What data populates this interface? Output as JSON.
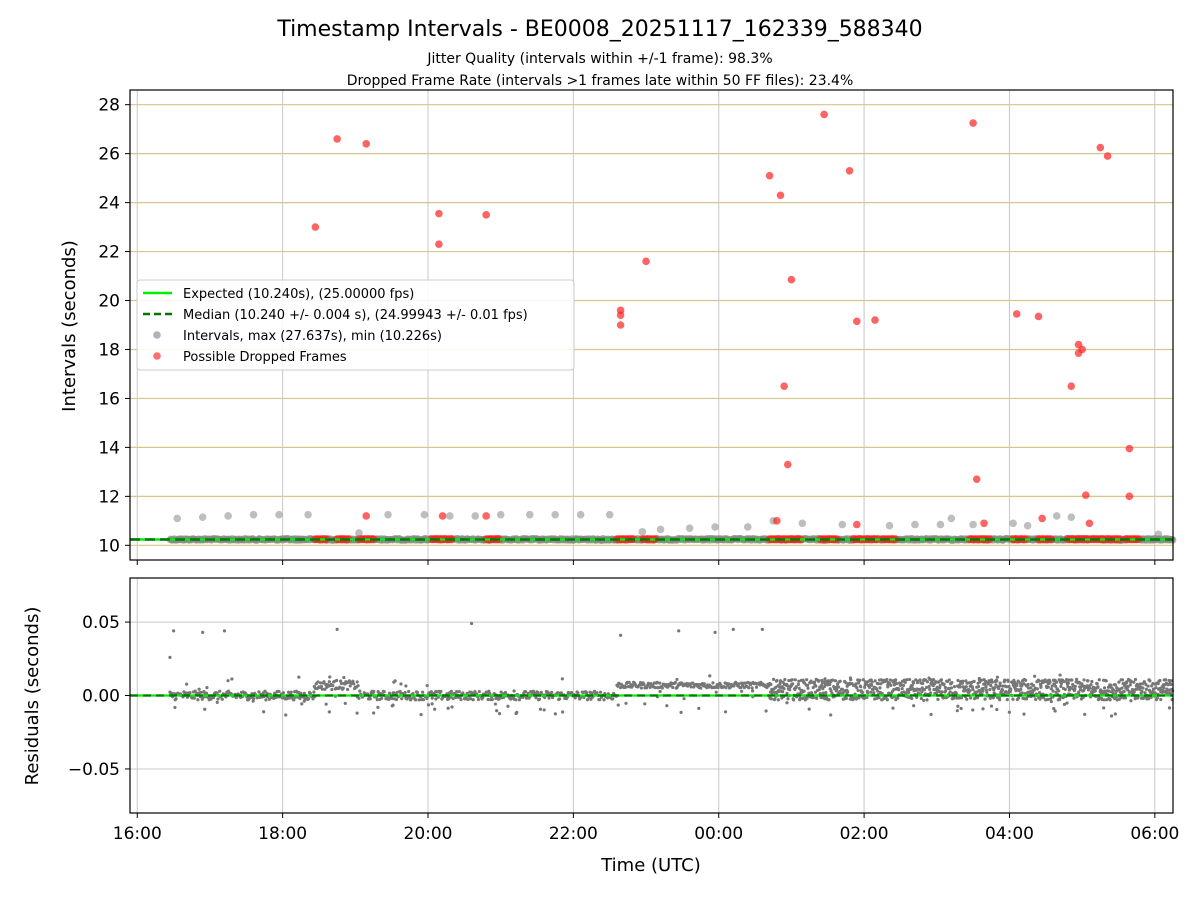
{
  "chart_data": {
    "title": "Timestamp Intervals - BE0008_20251117_162339_588340",
    "subtitle_lines": [
      "Jitter Quality (intervals within +/-1 frame): 98.3%",
      "Dropped Frame Rate (intervals >1 frames late within 50 FF files): 23.4%"
    ],
    "xlabel": "Time (UTC)",
    "x_axis_type": "time",
    "x_ticks": [
      "16:00",
      "18:00",
      "20:00",
      "22:00",
      "00:00",
      "02:00",
      "04:00",
      "06:00"
    ],
    "x_range_hours_since_16": [
      -0.1,
      14.25
    ],
    "grid": true,
    "legend_position": "center-left",
    "colors": {
      "expected": "#00ee00",
      "median": "#007700",
      "intervals": "#888888",
      "dropped": "#ff2222",
      "hgrid_top": "#d8c58a",
      "grid": "#c8c8c8",
      "residuals": "#777777"
    },
    "legend": {
      "expected": "Expected (10.240s), (25.00000 fps)",
      "median": "Median (10.240 +/- 0.004 s), (24.99943 +/- 0.01 fps)",
      "intervals": "Intervals, max (27.637s), min (10.226s)",
      "dropped": "Possible Dropped Frames"
    },
    "top_panel": {
      "type": "scatter",
      "ylabel": "Intervals (seconds)",
      "ylim": [
        9.4,
        28.6
      ],
      "y_ticks": [
        "10",
        "12",
        "14",
        "16",
        "18",
        "20",
        "22",
        "24",
        "26",
        "28"
      ],
      "expected_value": 10.24,
      "median_value": 10.24,
      "baseline_range_hours": [
        0.45,
        14.25
      ],
      "gray_points": [
        [
          0.55,
          11.1
        ],
        [
          0.9,
          11.15
        ],
        [
          1.25,
          11.2
        ],
        [
          1.6,
          11.25
        ],
        [
          1.95,
          11.25
        ],
        [
          2.35,
          11.25
        ],
        [
          3.05,
          10.5
        ],
        [
          3.45,
          11.25
        ],
        [
          3.95,
          11.25
        ],
        [
          4.3,
          11.2
        ],
        [
          4.65,
          11.2
        ],
        [
          5.0,
          11.25
        ],
        [
          5.4,
          11.25
        ],
        [
          5.75,
          11.25
        ],
        [
          6.1,
          11.25
        ],
        [
          6.5,
          11.25
        ],
        [
          6.95,
          10.55
        ],
        [
          7.2,
          10.65
        ],
        [
          7.6,
          10.7
        ],
        [
          7.95,
          10.75
        ],
        [
          8.4,
          10.75
        ],
        [
          8.75,
          11.0
        ],
        [
          9.15,
          10.9
        ],
        [
          9.7,
          10.85
        ],
        [
          10.35,
          10.8
        ],
        [
          10.7,
          10.85
        ],
        [
          11.05,
          10.85
        ],
        [
          11.2,
          11.1
        ],
        [
          11.5,
          10.85
        ],
        [
          12.05,
          10.9
        ],
        [
          12.25,
          10.8
        ],
        [
          12.65,
          11.2
        ],
        [
          12.85,
          11.15
        ],
        [
          14.05,
          10.45
        ]
      ],
      "dropped_points": [
        [
          2.45,
          23.0
        ],
        [
          2.75,
          26.6
        ],
        [
          3.15,
          26.4
        ],
        [
          3.15,
          11.2
        ],
        [
          4.15,
          23.55
        ],
        [
          4.15,
          22.3
        ],
        [
          4.2,
          11.2
        ],
        [
          4.8,
          23.5
        ],
        [
          4.8,
          11.2
        ],
        [
          6.65,
          19.6
        ],
        [
          6.65,
          19.4
        ],
        [
          6.65,
          19.0
        ],
        [
          7.0,
          21.6
        ],
        [
          8.7,
          25.1
        ],
        [
          8.85,
          24.3
        ],
        [
          8.9,
          16.5
        ],
        [
          8.95,
          13.3
        ],
        [
          9.0,
          20.85
        ],
        [
          8.8,
          11.0
        ],
        [
          9.45,
          27.6
        ],
        [
          9.8,
          25.3
        ],
        [
          9.9,
          19.15
        ],
        [
          9.9,
          10.85
        ],
        [
          10.15,
          19.2
        ],
        [
          11.5,
          27.25
        ],
        [
          11.55,
          12.7
        ],
        [
          11.65,
          10.9
        ],
        [
          12.1,
          19.45
        ],
        [
          12.4,
          19.35
        ],
        [
          12.45,
          11.1
        ],
        [
          12.85,
          16.5
        ],
        [
          12.95,
          18.2
        ],
        [
          12.95,
          17.85
        ],
        [
          13.0,
          18.0
        ],
        [
          13.05,
          12.05
        ],
        [
          13.1,
          10.9
        ],
        [
          13.25,
          26.25
        ],
        [
          13.35,
          25.9
        ],
        [
          13.65,
          13.95
        ],
        [
          13.65,
          12.0
        ]
      ],
      "dropped_cluster_ranges_hours": [
        [
          2.45,
          2.6
        ],
        [
          2.75,
          2.9
        ],
        [
          3.05,
          3.25
        ],
        [
          4.05,
          4.35
        ],
        [
          4.8,
          5.0
        ],
        [
          6.6,
          6.85
        ],
        [
          6.95,
          7.15
        ],
        [
          8.7,
          9.15
        ],
        [
          9.4,
          9.65
        ],
        [
          9.85,
          10.2
        ],
        [
          10.25,
          10.45
        ],
        [
          11.45,
          11.75
        ],
        [
          12.05,
          12.25
        ],
        [
          12.4,
          12.6
        ],
        [
          12.8,
          13.55
        ],
        [
          13.6,
          13.8
        ]
      ],
      "dropped_cluster_value": 10.25
    },
    "bottom_panel": {
      "type": "scatter",
      "ylabel": "Residuals (seconds)",
      "ylim": [
        -0.08,
        0.08
      ],
      "y_ticks": [
        "−0.05",
        "0.00",
        "0.05"
      ],
      "outliers": [
        [
          0.5,
          0.044
        ],
        [
          0.45,
          0.026
        ],
        [
          0.9,
          0.043
        ],
        [
          1.2,
          0.044
        ],
        [
          2.75,
          0.045
        ],
        [
          4.6,
          0.049
        ],
        [
          6.65,
          0.041
        ],
        [
          7.45,
          0.044
        ],
        [
          7.95,
          0.043
        ],
        [
          8.2,
          0.045
        ],
        [
          8.6,
          0.045
        ]
      ],
      "band_segments": [
        {
          "range": [
            0.45,
            2.45
          ],
          "value": 0.0,
          "spread": 0.003
        },
        {
          "range": [
            2.45,
            3.05
          ],
          "value": 0.007,
          "spread": 0.003
        },
        {
          "range": [
            3.05,
            6.6
          ],
          "value": 0.0,
          "spread": 0.003
        },
        {
          "range": [
            6.6,
            8.7
          ],
          "value": 0.007,
          "spread": 0.002
        },
        {
          "range": [
            8.7,
            14.25
          ],
          "value": 0.004,
          "spread": 0.007
        }
      ]
    }
  }
}
